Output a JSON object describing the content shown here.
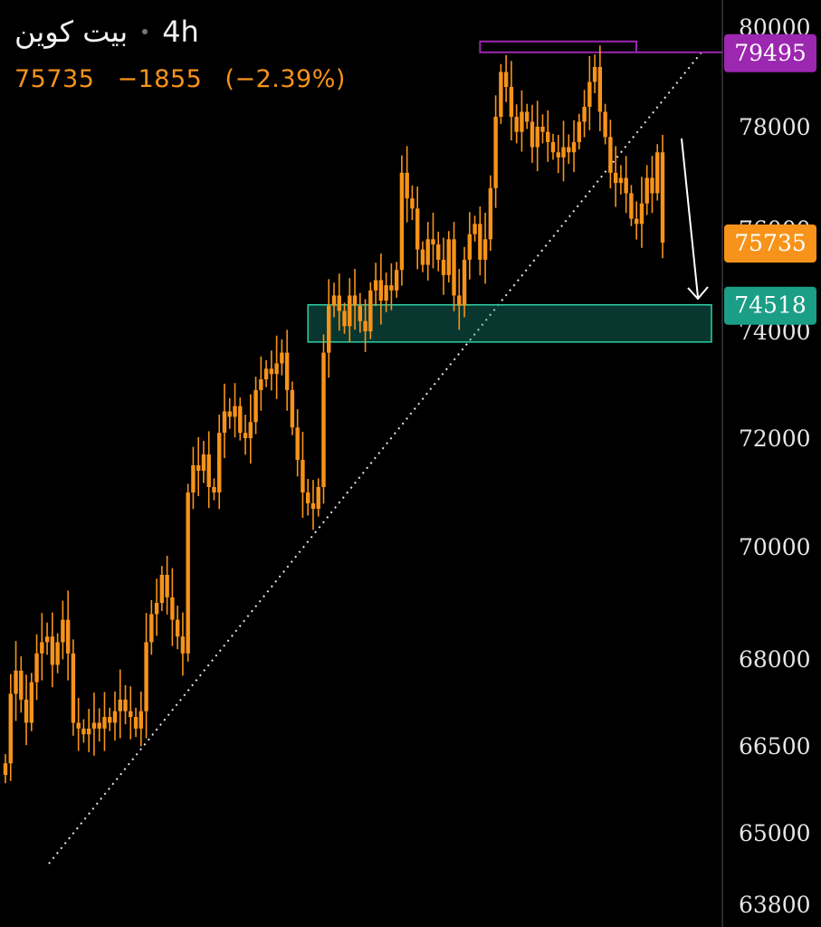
{
  "header": {
    "symbol": "بيت كوين",
    "interval": "4h"
  },
  "quote": {
    "last": "75735",
    "change": "−1855",
    "change_pct": "(−2.39%)"
  },
  "colors": {
    "candle": "#f7931a",
    "resistance": "#9c27b0",
    "support": "#1b9e86",
    "price_badge": "#f7931a",
    "trendline": "#e6e6e6",
    "arrow": "#ffffff"
  },
  "chart_data": {
    "type": "candlestick",
    "interval": "4h",
    "y_axis": {
      "side": "right",
      "tick_labels": [
        "80000",
        "78000",
        "76000",
        "74000",
        "72000",
        "70000",
        "68000",
        "66500",
        "65000",
        "63800"
      ],
      "ticks": [
        80000,
        78000,
        76000,
        74000,
        72000,
        70000,
        68000,
        66500,
        65000,
        63800
      ]
    },
    "closes": [
      66200,
      67400,
      67800,
      67300,
      66900,
      67600,
      68100,
      68300,
      68400,
      67900,
      68300,
      68700,
      68100,
      66900,
      66800,
      66700,
      66800,
      66900,
      66800,
      67000,
      66900,
      67100,
      67300,
      67100,
      67000,
      66800,
      67100,
      68300,
      68800,
      69000,
      69500,
      69100,
      68700,
      68400,
      68100,
      71000,
      71500,
      71400,
      71700,
      71100,
      71000,
      72100,
      72500,
      72400,
      72600,
      72100,
      72000,
      72300,
      72900,
      73100,
      73300,
      73200,
      73400,
      73600,
      72900,
      72200,
      71600,
      71000,
      70800,
      70700,
      71100,
      73600,
      74500,
      74700,
      74400,
      74100,
      74700,
      74500,
      74200,
      74000,
      74800,
      75000,
      74600,
      74900,
      74800,
      75200,
      77100,
      76600,
      76400,
      75600,
      75300,
      75800,
      75700,
      75400,
      75100,
      75800,
      74700,
      74500,
      75400,
      75900,
      76100,
      75400,
      75800,
      76800,
      78200,
      79100,
      78800,
      78200,
      77900,
      78300,
      78100,
      77600,
      78000,
      77900,
      77700,
      77500,
      77400,
      77600,
      77500,
      77700,
      78100,
      78400,
      78900,
      79200,
      78300,
      77800,
      77100,
      76900,
      77000,
      76700,
      76200,
      76100,
      76500,
      77000,
      76700,
      77500,
      75735
    ],
    "last_price": 75735,
    "resistance": {
      "level": 79495,
      "label": "79495"
    },
    "support": {
      "level": 74518,
      "label": "74518",
      "low": 73800
    },
    "current_price_label": "75735",
    "annotations": [
      "rising dotted trendline under the lows",
      "downward arrow pointing to the support zone"
    ]
  }
}
